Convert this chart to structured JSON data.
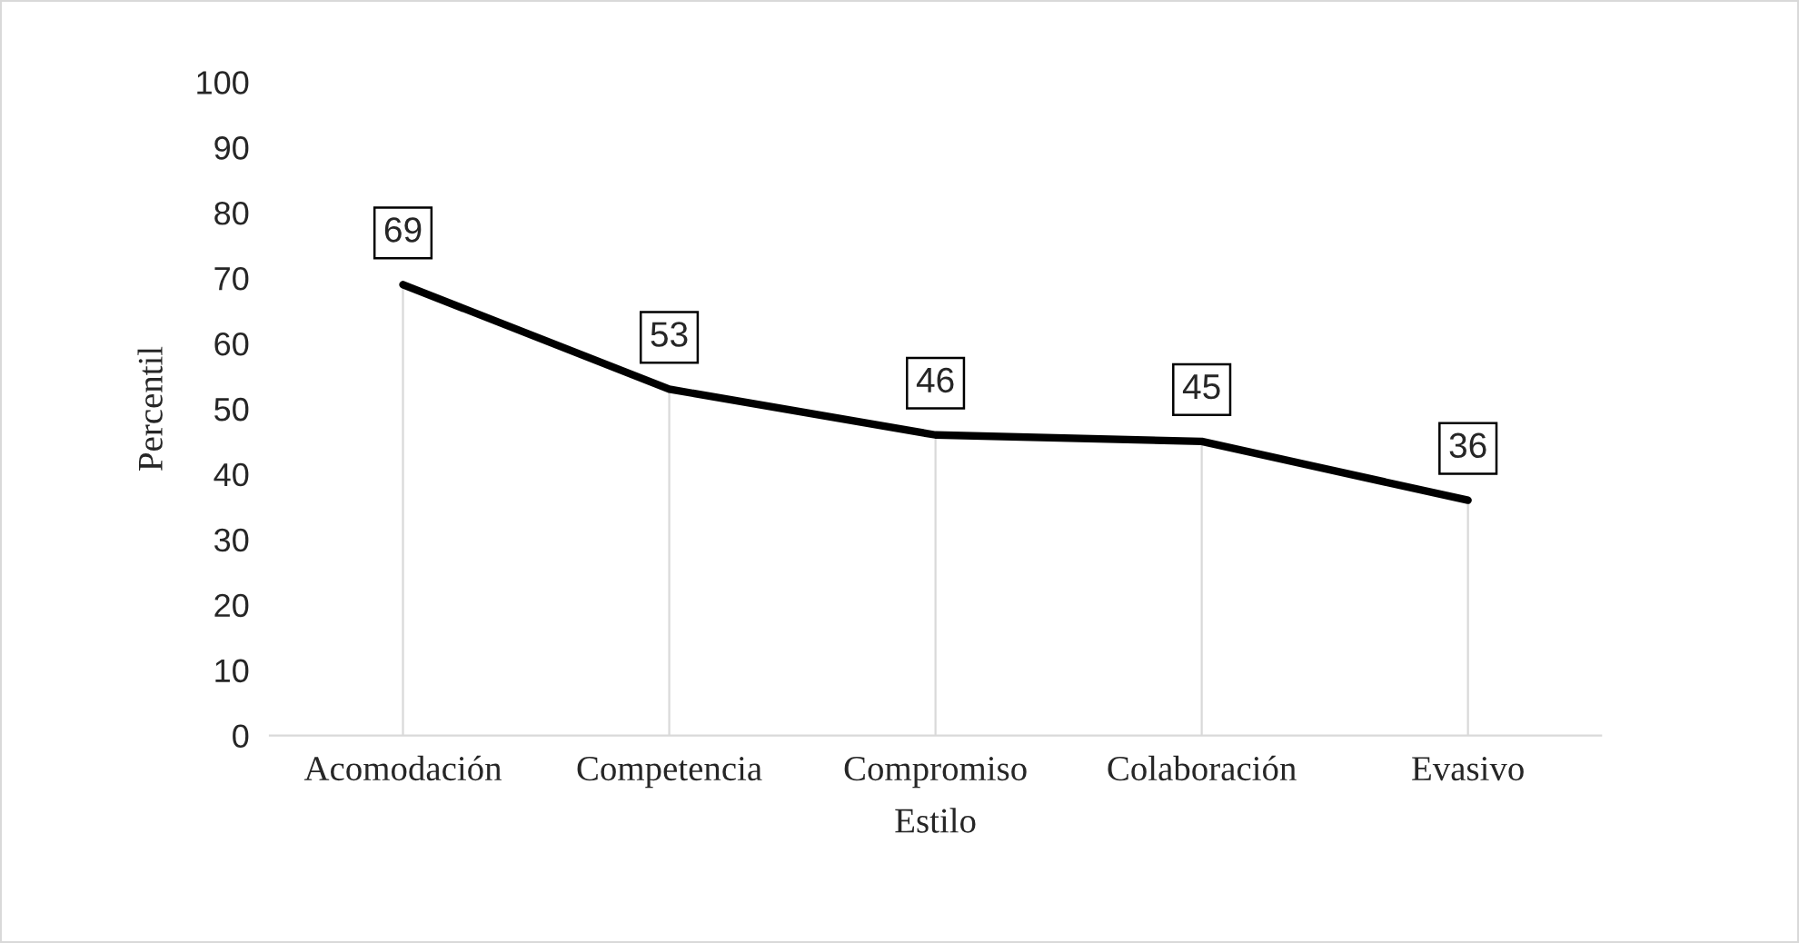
{
  "chart_data": {
    "type": "line",
    "xlabel": "Estilo",
    "ylabel": "Percentil",
    "categories": [
      "Acomodación",
      "Competencia",
      "Compromiso",
      "Colaboración",
      "Evasivo"
    ],
    "values": [
      69,
      53,
      46,
      45,
      36
    ],
    "color": "#000000",
    "ylim": [
      0,
      100
    ],
    "yticks": [
      0,
      10,
      20,
      30,
      40,
      50,
      60,
      70,
      80,
      90,
      100
    ],
    "data_labels": true,
    "grid": false,
    "marker": "none",
    "line_style": "solid"
  }
}
